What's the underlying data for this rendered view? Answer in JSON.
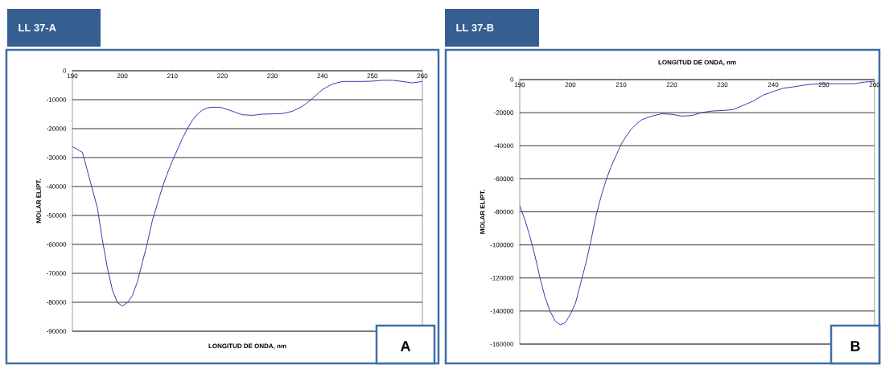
{
  "chart_data": [
    {
      "type": "line",
      "title": "LL 37-A",
      "xlabel": "LONGITUD DE ONDA, nm",
      "ylabel": "MOLAR ELIPT.",
      "annotations": [
        "A"
      ],
      "grid": "y",
      "line_style": "solid",
      "marker": "none",
      "xlim": [
        190,
        260
      ],
      "xticks": [
        190,
        200,
        210,
        220,
        230,
        240,
        250,
        260
      ],
      "ylim": [
        -90000,
        0
      ],
      "yticks": [
        -90000,
        -80000,
        -70000,
        -60000,
        -50000,
        -40000,
        -30000,
        -20000,
        -10000,
        0
      ],
      "series": [
        {
          "color": "#3a3ab0",
          "x": [
            190,
            192,
            195,
            196,
            197,
            198,
            199,
            200,
            201,
            202,
            203,
            204,
            205,
            206,
            207,
            208,
            209,
            210,
            211,
            212,
            213,
            214,
            215,
            216,
            217,
            218,
            219,
            220,
            222,
            224,
            226,
            228,
            230,
            232,
            234,
            236,
            238,
            240,
            242,
            244,
            246,
            248,
            250,
            252,
            254,
            256,
            258,
            260
          ],
          "values": [
            -26200,
            -28200,
            -47400,
            -58500,
            -68100,
            -75800,
            -80100,
            -81300,
            -80100,
            -77700,
            -72900,
            -66200,
            -59400,
            -51700,
            -46000,
            -40200,
            -35400,
            -31100,
            -27300,
            -23400,
            -20000,
            -17100,
            -15000,
            -13600,
            -12800,
            -12600,
            -12600,
            -12800,
            -14000,
            -15200,
            -15400,
            -15000,
            -14900,
            -14800,
            -14000,
            -12300,
            -9600,
            -6500,
            -4600,
            -3700,
            -3700,
            -3700,
            -3600,
            -3300,
            -3300,
            -3700,
            -4200,
            -3700
          ]
        }
      ]
    },
    {
      "type": "line",
      "title": "LL 37-B",
      "xlabel": "LONGITUD DE ONDA, nm",
      "ylabel": "MOLAR ELIPT.",
      "annotations": [
        "B"
      ],
      "grid": "y",
      "line_style": "solid",
      "marker": "none",
      "xlim": [
        190,
        260
      ],
      "xticks": [
        190,
        200,
        210,
        220,
        230,
        240,
        250,
        260
      ],
      "ylim": [
        -160000,
        0
      ],
      "yticks": [
        -160000,
        -140000,
        -120000,
        -100000,
        -80000,
        -60000,
        -40000,
        -20000,
        0
      ],
      "series": [
        {
          "color": "#3a3ab0",
          "x": [
            190,
            191,
            192,
            193,
            194,
            195,
            196,
            197,
            198,
            199,
            200,
            201,
            202,
            203,
            204,
            205,
            206,
            207,
            208,
            209,
            210,
            211,
            212,
            213,
            214,
            215,
            216,
            218,
            220,
            222,
            224,
            226,
            228,
            230,
            232,
            234,
            236,
            238,
            240,
            242,
            244,
            246,
            248,
            250,
            252,
            254,
            256,
            258,
            260
          ],
          "values": [
            -76300,
            -84700,
            -94800,
            -106600,
            -120000,
            -131800,
            -140200,
            -146100,
            -148300,
            -147000,
            -141900,
            -135200,
            -123400,
            -111600,
            -98100,
            -83000,
            -71200,
            -61100,
            -52700,
            -46000,
            -39200,
            -34200,
            -30000,
            -26900,
            -24400,
            -23200,
            -22100,
            -20700,
            -21000,
            -22100,
            -21700,
            -19900,
            -19000,
            -18700,
            -18200,
            -15700,
            -13100,
            -9400,
            -7200,
            -5200,
            -4400,
            -3400,
            -2700,
            -2500,
            -2500,
            -2500,
            -2500,
            -1500,
            -1000
          ]
        }
      ]
    }
  ]
}
